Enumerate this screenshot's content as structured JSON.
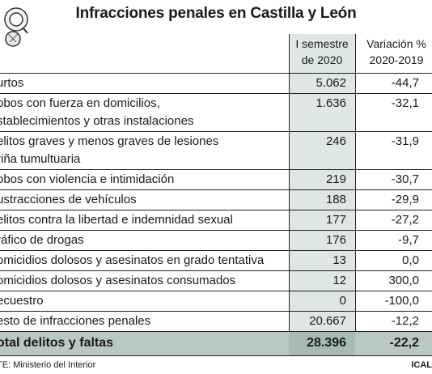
{
  "title": "Infracciones penales en Castilla y León",
  "chart_data": {
    "type": "table",
    "columns": [
      "",
      "I semestre de 2020",
      "Variación % 2020-2019"
    ],
    "rows": [
      {
        "label_lines": [
          "urtos"
        ],
        "value": "5.062",
        "change": "-44,7"
      },
      {
        "label_lines": [
          "obos con fuerza en domicilios,",
          "stablecimientos y otras instalaciones"
        ],
        "value": "1.636",
        "change": "-32,1"
      },
      {
        "label_lines": [
          "elitos graves y menos graves de lesiones",
          "riña tumultuaria"
        ],
        "value": "246",
        "change": "-31,9"
      },
      {
        "label_lines": [
          "obos con violencia e intimidación"
        ],
        "value": "219",
        "change": "-30,7"
      },
      {
        "label_lines": [
          "ustracciones de vehículos"
        ],
        "value": "188",
        "change": "-29,9"
      },
      {
        "label_lines": [
          "elitos contra la libertad e indemnidad sexual"
        ],
        "value": "177",
        "change": "-27,2"
      },
      {
        "label_lines": [
          "ráfico de drogas"
        ],
        "value": "176",
        "change": "-9,7"
      },
      {
        "label_lines": [
          "omicidios dolosos y asesinatos en grado tentativa"
        ],
        "value": "13",
        "change": "0,0"
      },
      {
        "label_lines": [
          "omicidios dolosos y asesinatos consumados"
        ],
        "value": "12",
        "change": "300,0"
      },
      {
        "label_lines": [
          "ecuestro"
        ],
        "value": "0",
        "change": "-100,0"
      },
      {
        "label_lines": [
          "esto de infracciones penales"
        ],
        "value": "20.667",
        "change": "-12,2"
      }
    ],
    "total": {
      "label": "otal delitos y faltas",
      "value": "28.396",
      "change": "-22,2"
    }
  },
  "header": {
    "col1_line1": "I semestre",
    "col1_line2": "de 2020",
    "col2_line1": "Variación %",
    "col2_line2": "2020-2019"
  },
  "footer": {
    "source": "TE: Ministerio del Interior",
    "brand": "ICAL"
  },
  "colors": {
    "column_shade": "#dfe7e3",
    "total_band": "#b9c8c2"
  }
}
